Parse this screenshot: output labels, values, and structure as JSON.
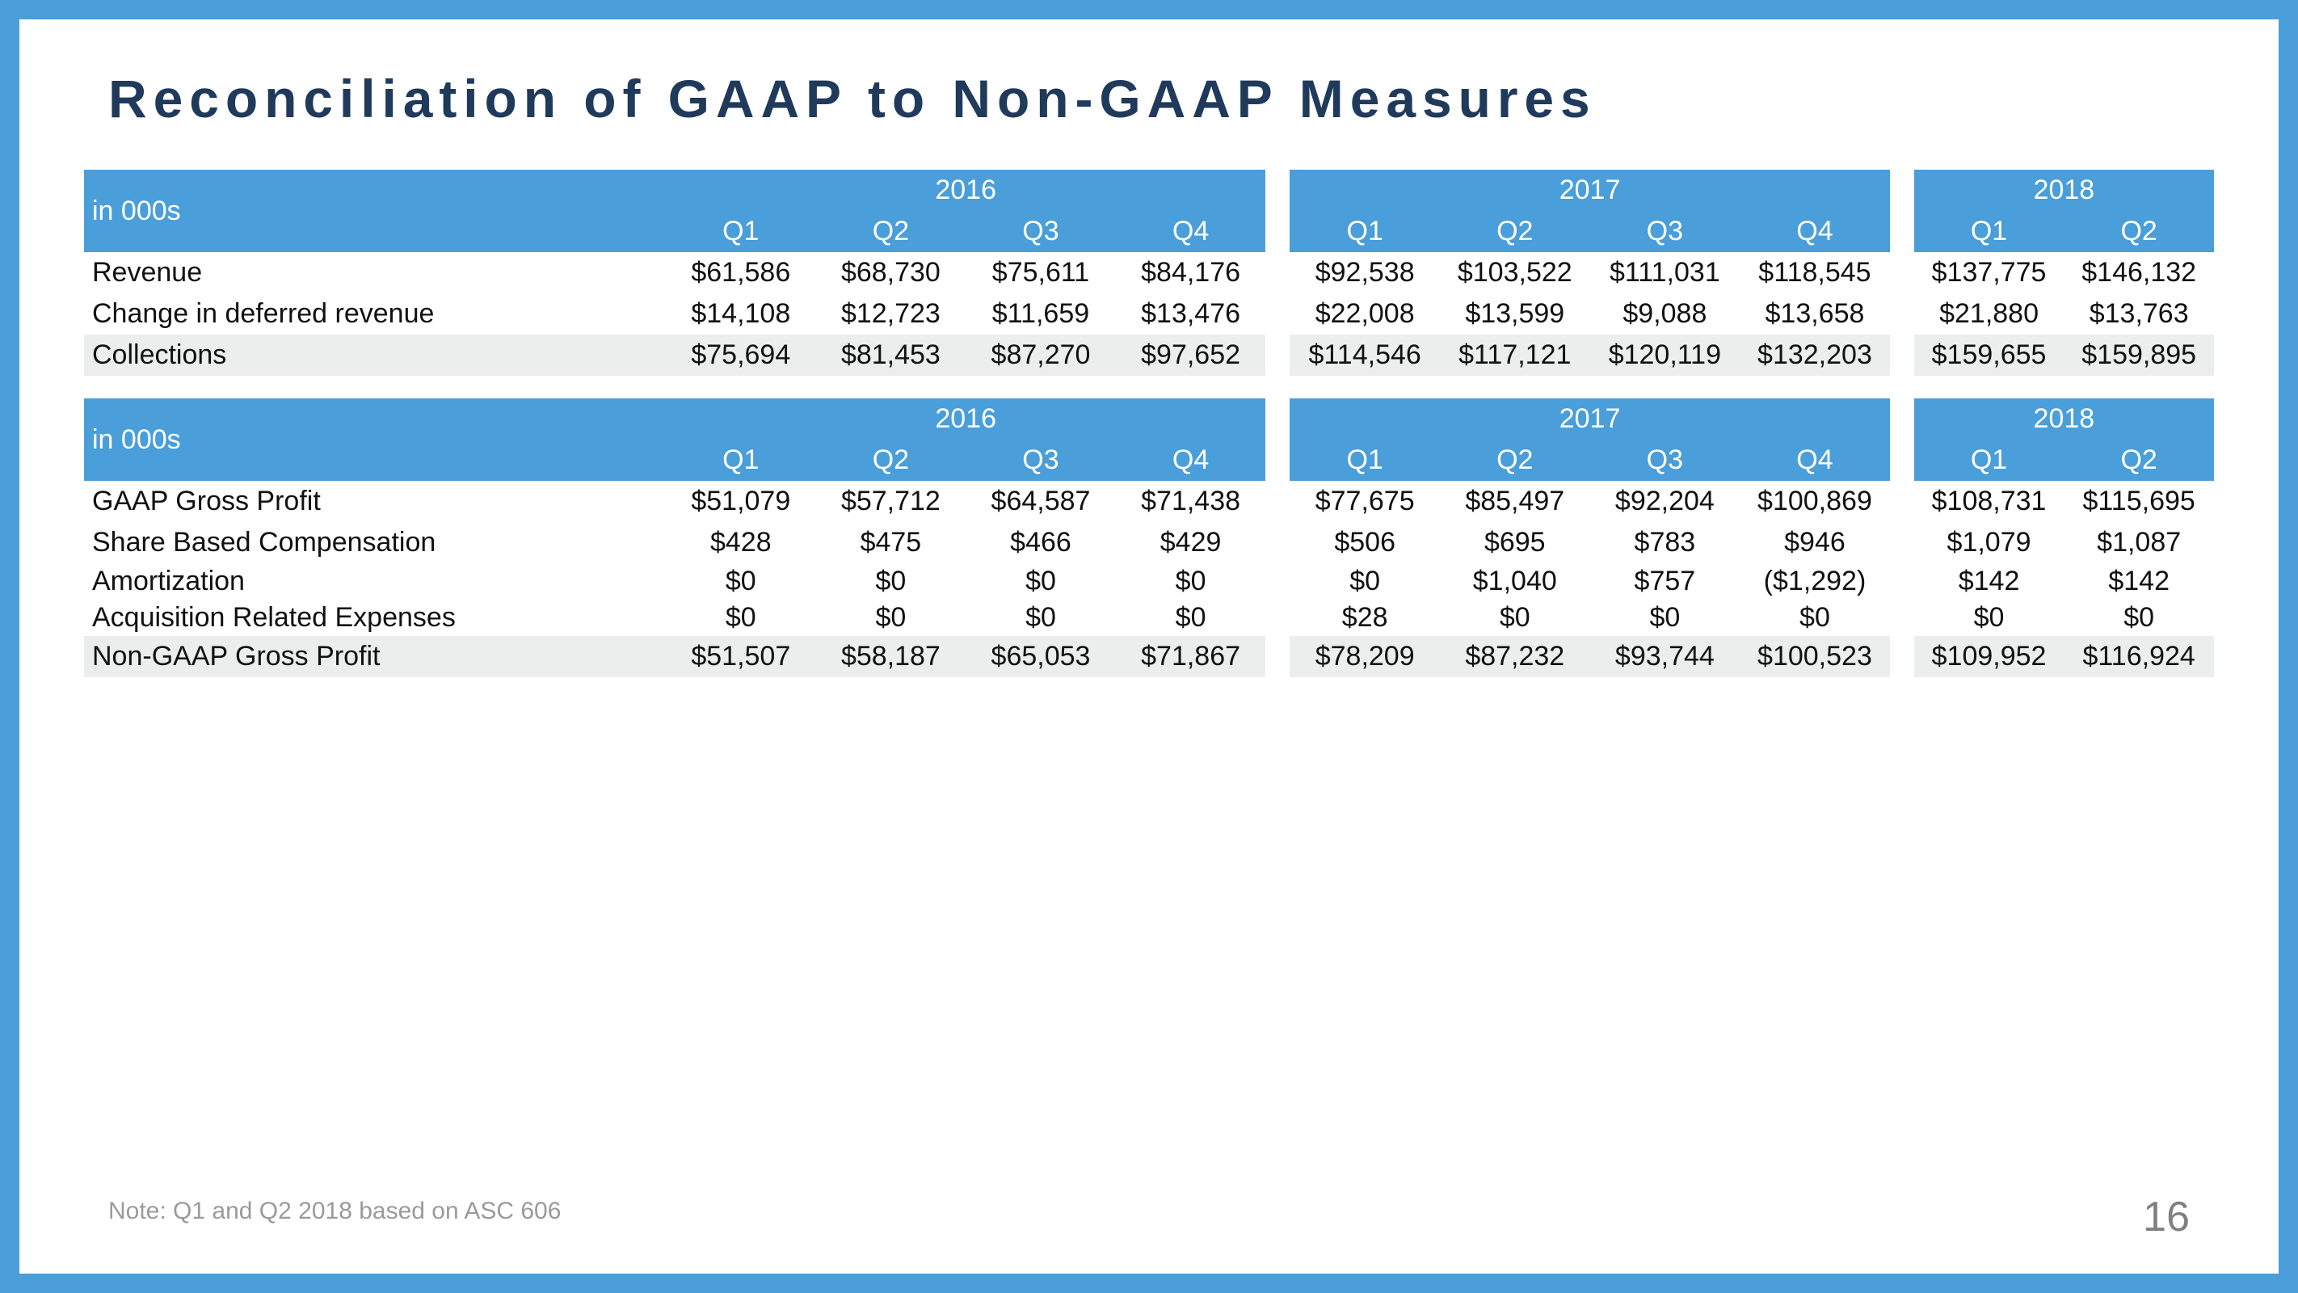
{
  "title": "Reconciliation of GAAP to Non-GAAP Measures",
  "units_label": "in 000s",
  "years": [
    {
      "label": "2016",
      "quarters": [
        "Q1",
        "Q2",
        "Q3",
        "Q4"
      ]
    },
    {
      "label": "2017",
      "quarters": [
        "Q1",
        "Q2",
        "Q3",
        "Q4"
      ]
    },
    {
      "label": "2018",
      "quarters": [
        "Q1",
        "Q2"
      ]
    }
  ],
  "colors": {
    "border": "#4a9eda",
    "header_bg": "#4a9eda",
    "header_fg": "#ffffff",
    "title_fg": "#1f3a5a",
    "shade_bg": "#eceded",
    "body_bg": "#ffffff",
    "text": "#111111",
    "footnote": "#9a9a9a",
    "pagenum": "#808080"
  },
  "tables": [
    {
      "rows": [
        {
          "label": "Revenue",
          "shade": false,
          "values": [
            "$61,586",
            "$68,730",
            "$75,611",
            "$84,176",
            "$92,538",
            "$103,522",
            "$111,031",
            "$118,545",
            "$137,775",
            "$146,132"
          ]
        },
        {
          "label": "Change in deferred revenue",
          "shade": false,
          "values": [
            "$14,108",
            "$12,723",
            "$11,659",
            "$13,476",
            "$22,008",
            "$13,599",
            "$9,088",
            "$13,658",
            "$21,880",
            "$13,763"
          ]
        },
        {
          "label": "Collections",
          "shade": true,
          "values": [
            "$75,694",
            "$81,453",
            "$87,270",
            "$97,652",
            "$114,546",
            "$117,121",
            "$120,119",
            "$132,203",
            "$159,655",
            "$159,895"
          ]
        }
      ]
    },
    {
      "rows": [
        {
          "label": "GAAP Gross Profit",
          "shade": false,
          "values": [
            "$51,079",
            "$57,712",
            "$64,587",
            "$71,438",
            "$77,675",
            "$85,497",
            "$92,204",
            "$100,869",
            "$108,731",
            "$115,695"
          ]
        },
        {
          "label": "Share Based Compensation",
          "shade": false,
          "values": [
            "$428",
            "$475",
            "$466",
            "$429",
            "$506",
            "$695",
            "$783",
            "$946",
            "$1,079",
            "$1,087"
          ]
        },
        {
          "label": "Amortization",
          "shade": false,
          "tight": true,
          "values": [
            "$0",
            "$0",
            "$0",
            "$0",
            "$0",
            "$1,040",
            "$757",
            "($1,292)",
            "$142",
            "$142"
          ]
        },
        {
          "label": "Acquisition Related Expenses",
          "shade": false,
          "tight": true,
          "values": [
            "$0",
            "$0",
            "$0",
            "$0",
            "$28",
            "$0",
            "$0",
            "$0",
            "$0",
            "$0"
          ]
        },
        {
          "label": "Non-GAAP Gross Profit",
          "shade": true,
          "values": [
            "$51,507",
            "$58,187",
            "$65,053",
            "$71,867",
            "$78,209",
            "$87,232",
            "$93,744",
            "$100,523",
            "$109,952",
            "$116,924"
          ]
        }
      ]
    }
  ],
  "footnote": "Note: Q1 and Q2 2018 based on ASC 606",
  "page_number": "16"
}
